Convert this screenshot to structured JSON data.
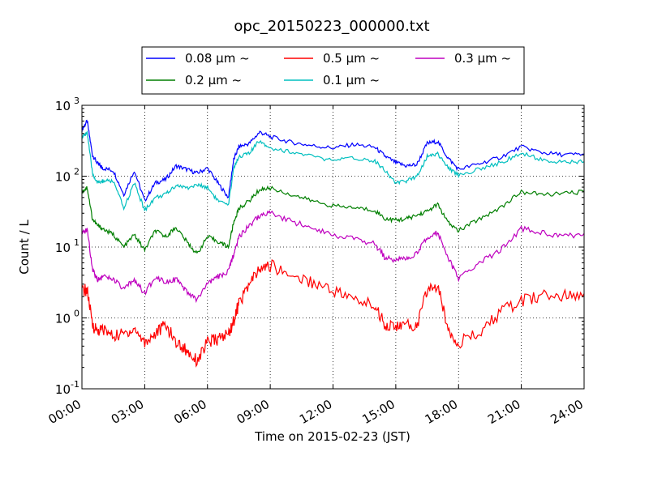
{
  "chart_data": {
    "type": "line",
    "title": "opc_20150223_000000.txt",
    "xlabel": "Time on 2015-02-23 (JST)",
    "ylabel": "Count / L",
    "yscale": "log",
    "ylim": [
      0.1,
      1000
    ],
    "xlim": [
      0,
      24
    ],
    "grid": true,
    "legend_position": "top-center",
    "x_tick_labels": [
      "00:00",
      "03:00",
      "06:00",
      "09:00",
      "12:00",
      "15:00",
      "18:00",
      "21:00",
      "24:00"
    ],
    "y_ticks": [
      {
        "base": "10",
        "exp": "-1"
      },
      {
        "base": "10",
        "exp": "0"
      },
      {
        "base": "10",
        "exp": "1"
      },
      {
        "base": "10",
        "exp": "2"
      },
      {
        "base": "10",
        "exp": "3"
      }
    ],
    "x": [
      0,
      0.25,
      0.5,
      0.75,
      1,
      1.5,
      2,
      2.5,
      3,
      3.5,
      4,
      4.5,
      5,
      5.5,
      6,
      6.5,
      7,
      7.25,
      7.5,
      8,
      8.5,
      9,
      10,
      11,
      12,
      13,
      14,
      14.5,
      15,
      15.5,
      16,
      16.5,
      17,
      17.5,
      18,
      19,
      20,
      21,
      22,
      23,
      24
    ],
    "series": [
      {
        "name": "0.08 μm ~",
        "color": "#0000ff",
        "values": [
          450,
          600,
          200,
          150,
          130,
          120,
          55,
          120,
          45,
          80,
          90,
          140,
          125,
          110,
          130,
          80,
          50,
          170,
          260,
          290,
          420,
          360,
          300,
          270,
          250,
          280,
          255,
          190,
          155,
          140,
          145,
          290,
          310,
          180,
          125,
          150,
          185,
          260,
          215,
          200,
          205
        ]
      },
      {
        "name": "0.2 μm ~",
        "color": "#007f00",
        "values": [
          60,
          70,
          25,
          20,
          18,
          15,
          10,
          15,
          9,
          17,
          14,
          19,
          12,
          8,
          14,
          12,
          10,
          22,
          35,
          45,
          65,
          68,
          55,
          45,
          38,
          36,
          33,
          25,
          24,
          25,
          28,
          32,
          40,
          22,
          17,
          25,
          36,
          60,
          55,
          57,
          60
        ]
      },
      {
        "name": "0.5 μm ~",
        "color": "#ff0000",
        "values": [
          2.4,
          2.5,
          0.8,
          0.65,
          0.7,
          0.55,
          0.6,
          0.7,
          0.45,
          0.6,
          0.8,
          0.45,
          0.35,
          0.25,
          0.45,
          0.5,
          0.6,
          0.9,
          1.6,
          3.0,
          4.8,
          5.5,
          4.0,
          3.2,
          2.5,
          1.8,
          1.5,
          0.8,
          0.75,
          0.8,
          0.75,
          2.5,
          2.8,
          0.7,
          0.45,
          0.6,
          1.2,
          1.7,
          2.1,
          2.0,
          2.2
        ]
      },
      {
        "name": "0.1 μm ~",
        "color": "#00bfbf",
        "values": [
          350,
          420,
          110,
          80,
          85,
          85,
          35,
          80,
          33,
          50,
          55,
          75,
          68,
          75,
          70,
          45,
          38,
          130,
          190,
          210,
          320,
          250,
          220,
          190,
          165,
          180,
          165,
          120,
          80,
          85,
          100,
          190,
          210,
          130,
          105,
          125,
          155,
          210,
          170,
          155,
          160
        ]
      },
      {
        "name": "0.3 μm ~",
        "color": "#bf00bf",
        "values": [
          15,
          18,
          5,
          3.5,
          3.8,
          3.5,
          2.5,
          3.5,
          2.2,
          3.8,
          3.3,
          3.5,
          2.3,
          1.8,
          3.0,
          3.8,
          4.5,
          8,
          14,
          20,
          28,
          30,
          23,
          19,
          15,
          13,
          11,
          7,
          6.5,
          7,
          8,
          14,
          16,
          7,
          3.6,
          6,
          9,
          18,
          16,
          14,
          15.5
        ]
      }
    ]
  }
}
